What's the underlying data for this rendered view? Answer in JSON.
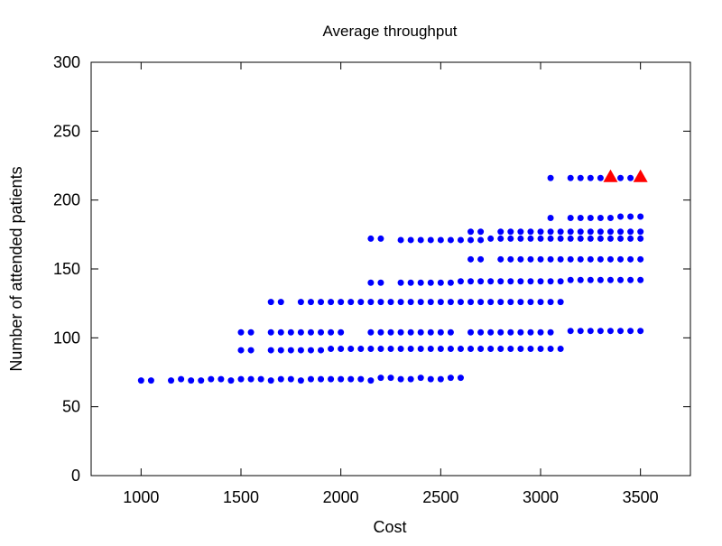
{
  "chart_data": {
    "type": "scatter",
    "title": "Average throughput",
    "xlabel": "Cost",
    "ylabel": "Number of attended patients",
    "xlim": [
      750,
      3750
    ],
    "ylim": [
      0,
      300
    ],
    "x_ticks": [
      1000,
      1500,
      2000,
      2500,
      3000,
      3500
    ],
    "y_ticks": [
      0,
      50,
      100,
      150,
      200,
      250,
      300
    ],
    "grid": false,
    "legend": "none",
    "series": [
      {
        "marker": "circle",
        "color": "#0000ff",
        "points": [
          [
            1000,
            69
          ],
          [
            1050,
            69
          ],
          [
            1150,
            69
          ],
          [
            1200,
            70
          ],
          [
            1250,
            69
          ],
          [
            1300,
            69
          ],
          [
            1350,
            70
          ],
          [
            1400,
            70
          ],
          [
            1450,
            69
          ],
          [
            1500,
            70
          ],
          [
            1550,
            70
          ],
          [
            1600,
            70
          ],
          [
            1650,
            69
          ],
          [
            1700,
            70
          ],
          [
            1750,
            70
          ],
          [
            1800,
            69
          ],
          [
            1850,
            70
          ],
          [
            1900,
            70
          ],
          [
            1950,
            70
          ],
          [
            2000,
            70
          ],
          [
            2050,
            70
          ],
          [
            2100,
            70
          ],
          [
            2150,
            69
          ],
          [
            2200,
            71
          ],
          [
            2250,
            71
          ],
          [
            2300,
            70
          ],
          [
            2350,
            70
          ],
          [
            2400,
            71
          ],
          [
            2450,
            70
          ],
          [
            2500,
            70
          ],
          [
            2550,
            71
          ],
          [
            2600,
            71
          ],
          [
            1500,
            91
          ],
          [
            1550,
            91
          ],
          [
            1650,
            91
          ],
          [
            1700,
            91
          ],
          [
            1750,
            91
          ],
          [
            1800,
            91
          ],
          [
            1850,
            91
          ],
          [
            1900,
            91
          ],
          [
            1950,
            92
          ],
          [
            2000,
            92
          ],
          [
            2050,
            92
          ],
          [
            2100,
            92
          ],
          [
            2150,
            92
          ],
          [
            2200,
            92
          ],
          [
            2250,
            92
          ],
          [
            2300,
            92
          ],
          [
            2350,
            92
          ],
          [
            2400,
            92
          ],
          [
            2450,
            92
          ],
          [
            2500,
            92
          ],
          [
            2550,
            92
          ],
          [
            2600,
            92
          ],
          [
            2650,
            92
          ],
          [
            2700,
            92
          ],
          [
            2750,
            92
          ],
          [
            2800,
            92
          ],
          [
            2850,
            92
          ],
          [
            2900,
            92
          ],
          [
            2950,
            92
          ],
          [
            3000,
            92
          ],
          [
            3050,
            92
          ],
          [
            3100,
            92
          ],
          [
            1500,
            104
          ],
          [
            1550,
            104
          ],
          [
            1650,
            104
          ],
          [
            1700,
            104
          ],
          [
            1750,
            104
          ],
          [
            1800,
            104
          ],
          [
            1850,
            104
          ],
          [
            1900,
            104
          ],
          [
            1950,
            104
          ],
          [
            2000,
            104
          ],
          [
            2150,
            104
          ],
          [
            2200,
            104
          ],
          [
            2250,
            104
          ],
          [
            2300,
            104
          ],
          [
            2350,
            104
          ],
          [
            2400,
            104
          ],
          [
            2450,
            104
          ],
          [
            2500,
            104
          ],
          [
            2550,
            104
          ],
          [
            2650,
            104
          ],
          [
            2700,
            104
          ],
          [
            2750,
            104
          ],
          [
            2800,
            104
          ],
          [
            2850,
            104
          ],
          [
            2900,
            104
          ],
          [
            2950,
            104
          ],
          [
            3000,
            104
          ],
          [
            3050,
            104
          ],
          [
            3150,
            105
          ],
          [
            3200,
            105
          ],
          [
            3250,
            105
          ],
          [
            3300,
            105
          ],
          [
            3350,
            105
          ],
          [
            3400,
            105
          ],
          [
            3450,
            105
          ],
          [
            3500,
            105
          ],
          [
            1650,
            126
          ],
          [
            1700,
            126
          ],
          [
            1800,
            126
          ],
          [
            1850,
            126
          ],
          [
            1900,
            126
          ],
          [
            1950,
            126
          ],
          [
            2000,
            126
          ],
          [
            2050,
            126
          ],
          [
            2100,
            126
          ],
          [
            2150,
            126
          ],
          [
            2200,
            126
          ],
          [
            2250,
            126
          ],
          [
            2300,
            126
          ],
          [
            2350,
            126
          ],
          [
            2400,
            126
          ],
          [
            2450,
            126
          ],
          [
            2500,
            126
          ],
          [
            2550,
            126
          ],
          [
            2600,
            126
          ],
          [
            2650,
            126
          ],
          [
            2700,
            126
          ],
          [
            2750,
            126
          ],
          [
            2800,
            126
          ],
          [
            2850,
            126
          ],
          [
            2900,
            126
          ],
          [
            2950,
            126
          ],
          [
            3000,
            126
          ],
          [
            3050,
            126
          ],
          [
            3100,
            126
          ],
          [
            2150,
            140
          ],
          [
            2200,
            140
          ],
          [
            2300,
            140
          ],
          [
            2350,
            140
          ],
          [
            2400,
            140
          ],
          [
            2450,
            140
          ],
          [
            2500,
            140
          ],
          [
            2550,
            140
          ],
          [
            2600,
            141
          ],
          [
            2650,
            141
          ],
          [
            2700,
            141
          ],
          [
            2750,
            141
          ],
          [
            2800,
            141
          ],
          [
            2850,
            141
          ],
          [
            2900,
            141
          ],
          [
            2950,
            141
          ],
          [
            3000,
            141
          ],
          [
            3050,
            141
          ],
          [
            3100,
            141
          ],
          [
            3150,
            142
          ],
          [
            3200,
            142
          ],
          [
            3250,
            142
          ],
          [
            3300,
            142
          ],
          [
            3350,
            142
          ],
          [
            3400,
            142
          ],
          [
            3450,
            142
          ],
          [
            3500,
            142
          ],
          [
            2650,
            157
          ],
          [
            2700,
            157
          ],
          [
            2800,
            157
          ],
          [
            2850,
            157
          ],
          [
            2900,
            157
          ],
          [
            2950,
            157
          ],
          [
            3000,
            157
          ],
          [
            3050,
            157
          ],
          [
            3100,
            157
          ],
          [
            3150,
            157
          ],
          [
            3200,
            157
          ],
          [
            3250,
            157
          ],
          [
            3300,
            157
          ],
          [
            3350,
            157
          ],
          [
            3400,
            157
          ],
          [
            3450,
            157
          ],
          [
            3500,
            157
          ],
          [
            2150,
            172
          ],
          [
            2200,
            172
          ],
          [
            2300,
            171
          ],
          [
            2350,
            171
          ],
          [
            2400,
            171
          ],
          [
            2450,
            171
          ],
          [
            2500,
            171
          ],
          [
            2550,
            171
          ],
          [
            2600,
            171
          ],
          [
            2650,
            171
          ],
          [
            2700,
            171
          ],
          [
            2750,
            172
          ],
          [
            2800,
            172
          ],
          [
            2850,
            172
          ],
          [
            2900,
            172
          ],
          [
            2950,
            172
          ],
          [
            3000,
            172
          ],
          [
            3050,
            172
          ],
          [
            3100,
            172
          ],
          [
            3150,
            172
          ],
          [
            3200,
            172
          ],
          [
            3250,
            172
          ],
          [
            3300,
            172
          ],
          [
            3350,
            172
          ],
          [
            3400,
            172
          ],
          [
            3450,
            172
          ],
          [
            3500,
            172
          ],
          [
            2650,
            177
          ],
          [
            2700,
            177
          ],
          [
            2800,
            177
          ],
          [
            2850,
            177
          ],
          [
            2900,
            177
          ],
          [
            2950,
            177
          ],
          [
            3000,
            177
          ],
          [
            3050,
            177
          ],
          [
            3100,
            177
          ],
          [
            3150,
            177
          ],
          [
            3200,
            177
          ],
          [
            3250,
            177
          ],
          [
            3300,
            177
          ],
          [
            3350,
            177
          ],
          [
            3400,
            177
          ],
          [
            3450,
            177
          ],
          [
            3500,
            177
          ],
          [
            3050,
            187
          ],
          [
            3150,
            187
          ],
          [
            3200,
            187
          ],
          [
            3250,
            187
          ],
          [
            3300,
            187
          ],
          [
            3350,
            187
          ],
          [
            3400,
            188
          ],
          [
            3450,
            188
          ],
          [
            3500,
            188
          ],
          [
            3050,
            216
          ],
          [
            3150,
            216
          ],
          [
            3200,
            216
          ],
          [
            3250,
            216
          ],
          [
            3300,
            216
          ],
          [
            3400,
            216
          ],
          [
            3450,
            216
          ]
        ]
      },
      {
        "marker": "triangle",
        "color": "#ff0000",
        "points": [
          [
            3350,
            217
          ],
          [
            3500,
            217
          ]
        ]
      }
    ]
  }
}
